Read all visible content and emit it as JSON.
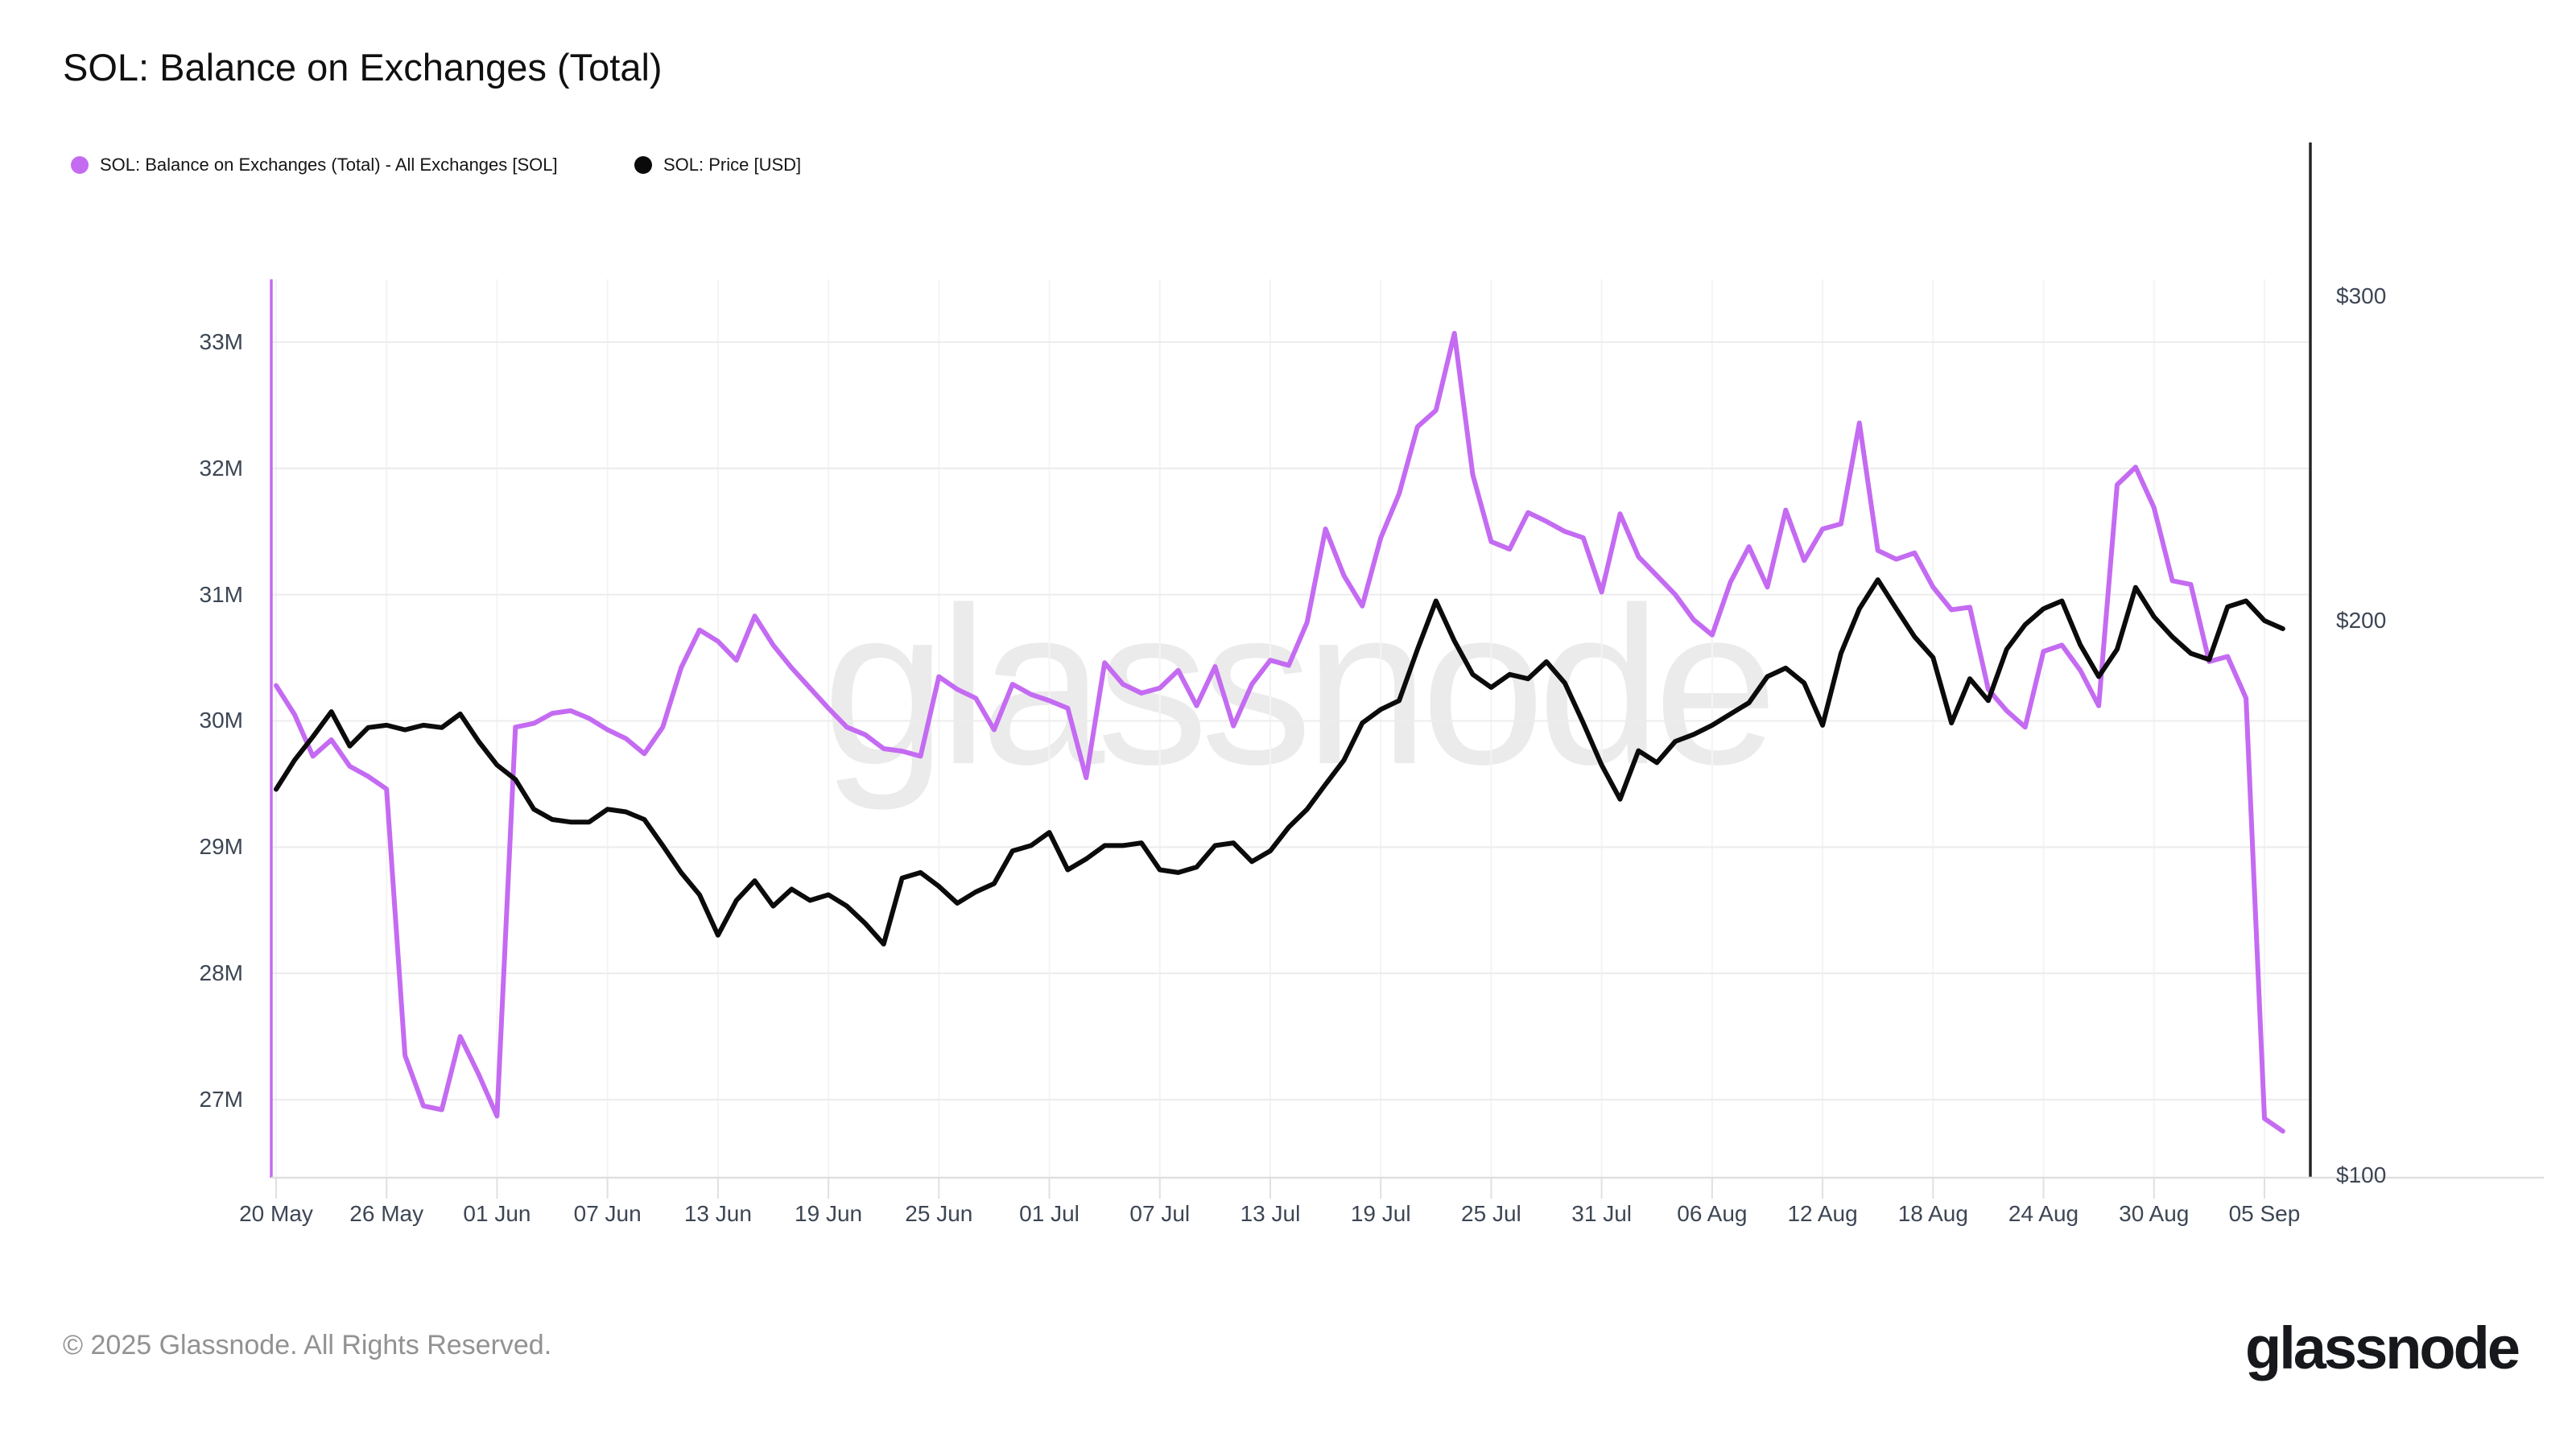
{
  "header": {
    "title": "SOL: Balance on Exchanges (Total)"
  },
  "legend": {
    "items": [
      {
        "label": "SOL: Balance on Exchanges (Total) - All Exchanges [SOL]",
        "color": "#c46bf2"
      },
      {
        "label": "SOL: Price [USD]",
        "color": "#0a0a0a"
      }
    ]
  },
  "watermark": "glassnode",
  "footer": {
    "copyright": "© 2025 Glassnode. All Rights Reserved.",
    "brand": "glassnode"
  },
  "colors": {
    "balance_line": "#c46bf2",
    "price_line": "#0b0b0b",
    "left_axis": "#c46bf2",
    "right_axis": "#262626",
    "bottom_axis": "#e0e0e0",
    "gridline_h": "#ececec",
    "gridline_v": "#f4f4f4",
    "tick_label": "#3d4654",
    "watermark": "#ebebeb"
  },
  "chart_data": {
    "type": "line",
    "title": "SOL: Balance on Exchanges (Total)",
    "x_start": "2025-05-20",
    "x_interval_days": 1,
    "x_tick_labels": [
      "20 May",
      "26 May",
      "01 Jun",
      "07 Jun",
      "13 Jun",
      "19 Jun",
      "25 Jun",
      "01 Jul",
      "07 Jul",
      "13 Jul",
      "19 Jul",
      "25 Jul",
      "31 Jul",
      "06 Aug",
      "12 Aug",
      "18 Aug",
      "24 Aug",
      "30 Aug",
      "05 Sep"
    ],
    "x_tick_interval_points": 6,
    "y_left": {
      "ticks": [
        {
          "label": "33M",
          "value": 33
        },
        {
          "label": "32M",
          "value": 32
        },
        {
          "label": "31M",
          "value": 31
        },
        {
          "label": "30M",
          "value": 30
        },
        {
          "label": "29M",
          "value": 29
        },
        {
          "label": "28M",
          "value": 28
        },
        {
          "label": "27M",
          "value": 27
        }
      ],
      "unit": "SOL (millions)",
      "scale": "linear",
      "range_top": 33.5,
      "range_bottom": 26.4
    },
    "y_right": {
      "ticks": [
        {
          "label": "$300",
          "value": 300
        },
        {
          "label": "$200",
          "value": 200
        },
        {
          "label": "$100",
          "value": 100
        }
      ],
      "unit": "USD",
      "scale": "log"
    },
    "grid": true,
    "legend_position": "top-left",
    "series": [
      {
        "name": "SOL: Balance on Exchanges (Total) - All Exchanges [SOL]",
        "axis": "left",
        "color": "#c46bf2",
        "values": [
          30.28,
          30.05,
          29.72,
          29.85,
          29.64,
          29.56,
          29.46,
          27.35,
          26.95,
          26.92,
          27.5,
          27.2,
          26.87,
          29.95,
          29.98,
          30.06,
          30.08,
          30.02,
          29.93,
          29.86,
          29.74,
          29.95,
          30.42,
          30.72,
          30.63,
          30.48,
          30.83,
          30.6,
          30.42,
          30.26,
          30.1,
          29.95,
          29.89,
          29.78,
          29.76,
          29.72,
          30.35,
          30.25,
          30.18,
          29.93,
          30.29,
          30.21,
          30.16,
          30.1,
          29.55,
          30.46,
          30.29,
          30.22,
          30.26,
          30.4,
          30.12,
          30.43,
          29.96,
          30.29,
          30.48,
          30.44,
          30.78,
          31.52,
          31.15,
          30.91,
          31.45,
          31.8,
          32.33,
          32.46,
          33.07,
          31.95,
          31.42,
          31.36,
          31.65,
          31.58,
          31.5,
          31.45,
          31.02,
          31.64,
          31.3,
          31.15,
          31.0,
          30.8,
          30.68,
          31.1,
          31.38,
          31.06,
          31.67,
          31.27,
          31.52,
          31.56,
          32.36,
          31.35,
          31.28,
          31.33,
          31.06,
          30.88,
          30.9,
          30.25,
          30.08,
          29.95,
          30.55,
          30.6,
          30.4,
          30.12,
          31.87,
          32.01,
          31.69,
          31.11,
          31.08,
          30.47,
          30.51,
          30.18,
          26.85,
          26.75
        ]
      },
      {
        "name": "SOL: Price [USD]",
        "axis": "right",
        "color": "#0b0b0b",
        "values": [
          162,
          168,
          173,
          178.5,
          171,
          175,
          175.5,
          174.5,
          175.5,
          175,
          178,
          172,
          167,
          164,
          158,
          156,
          155.5,
          155.5,
          158,
          157.5,
          156,
          151,
          146,
          142,
          135,
          141,
          144.5,
          140,
          143,
          141,
          142,
          140,
          137,
          133.5,
          145,
          146,
          143.5,
          140.5,
          142.5,
          144,
          150,
          151,
          153.5,
          146.5,
          148.5,
          151,
          151,
          151.5,
          146.5,
          146,
          147,
          151,
          151.5,
          148,
          150,
          154.5,
          158,
          163,
          168,
          176,
          179,
          181,
          193,
          205,
          195,
          187,
          184,
          187,
          186,
          190,
          185,
          176,
          167,
          160,
          170,
          167.5,
          172,
          173.5,
          175.5,
          178,
          180.5,
          186.5,
          188.5,
          185,
          175.5,
          192,
          203,
          210.5,
          203,
          196,
          191,
          176,
          186,
          181,
          193,
          199,
          203,
          205,
          194,
          186.5,
          193,
          208.5,
          201,
          196,
          192,
          190.5,
          203.5,
          205,
          200,
          198
        ]
      }
    ]
  }
}
